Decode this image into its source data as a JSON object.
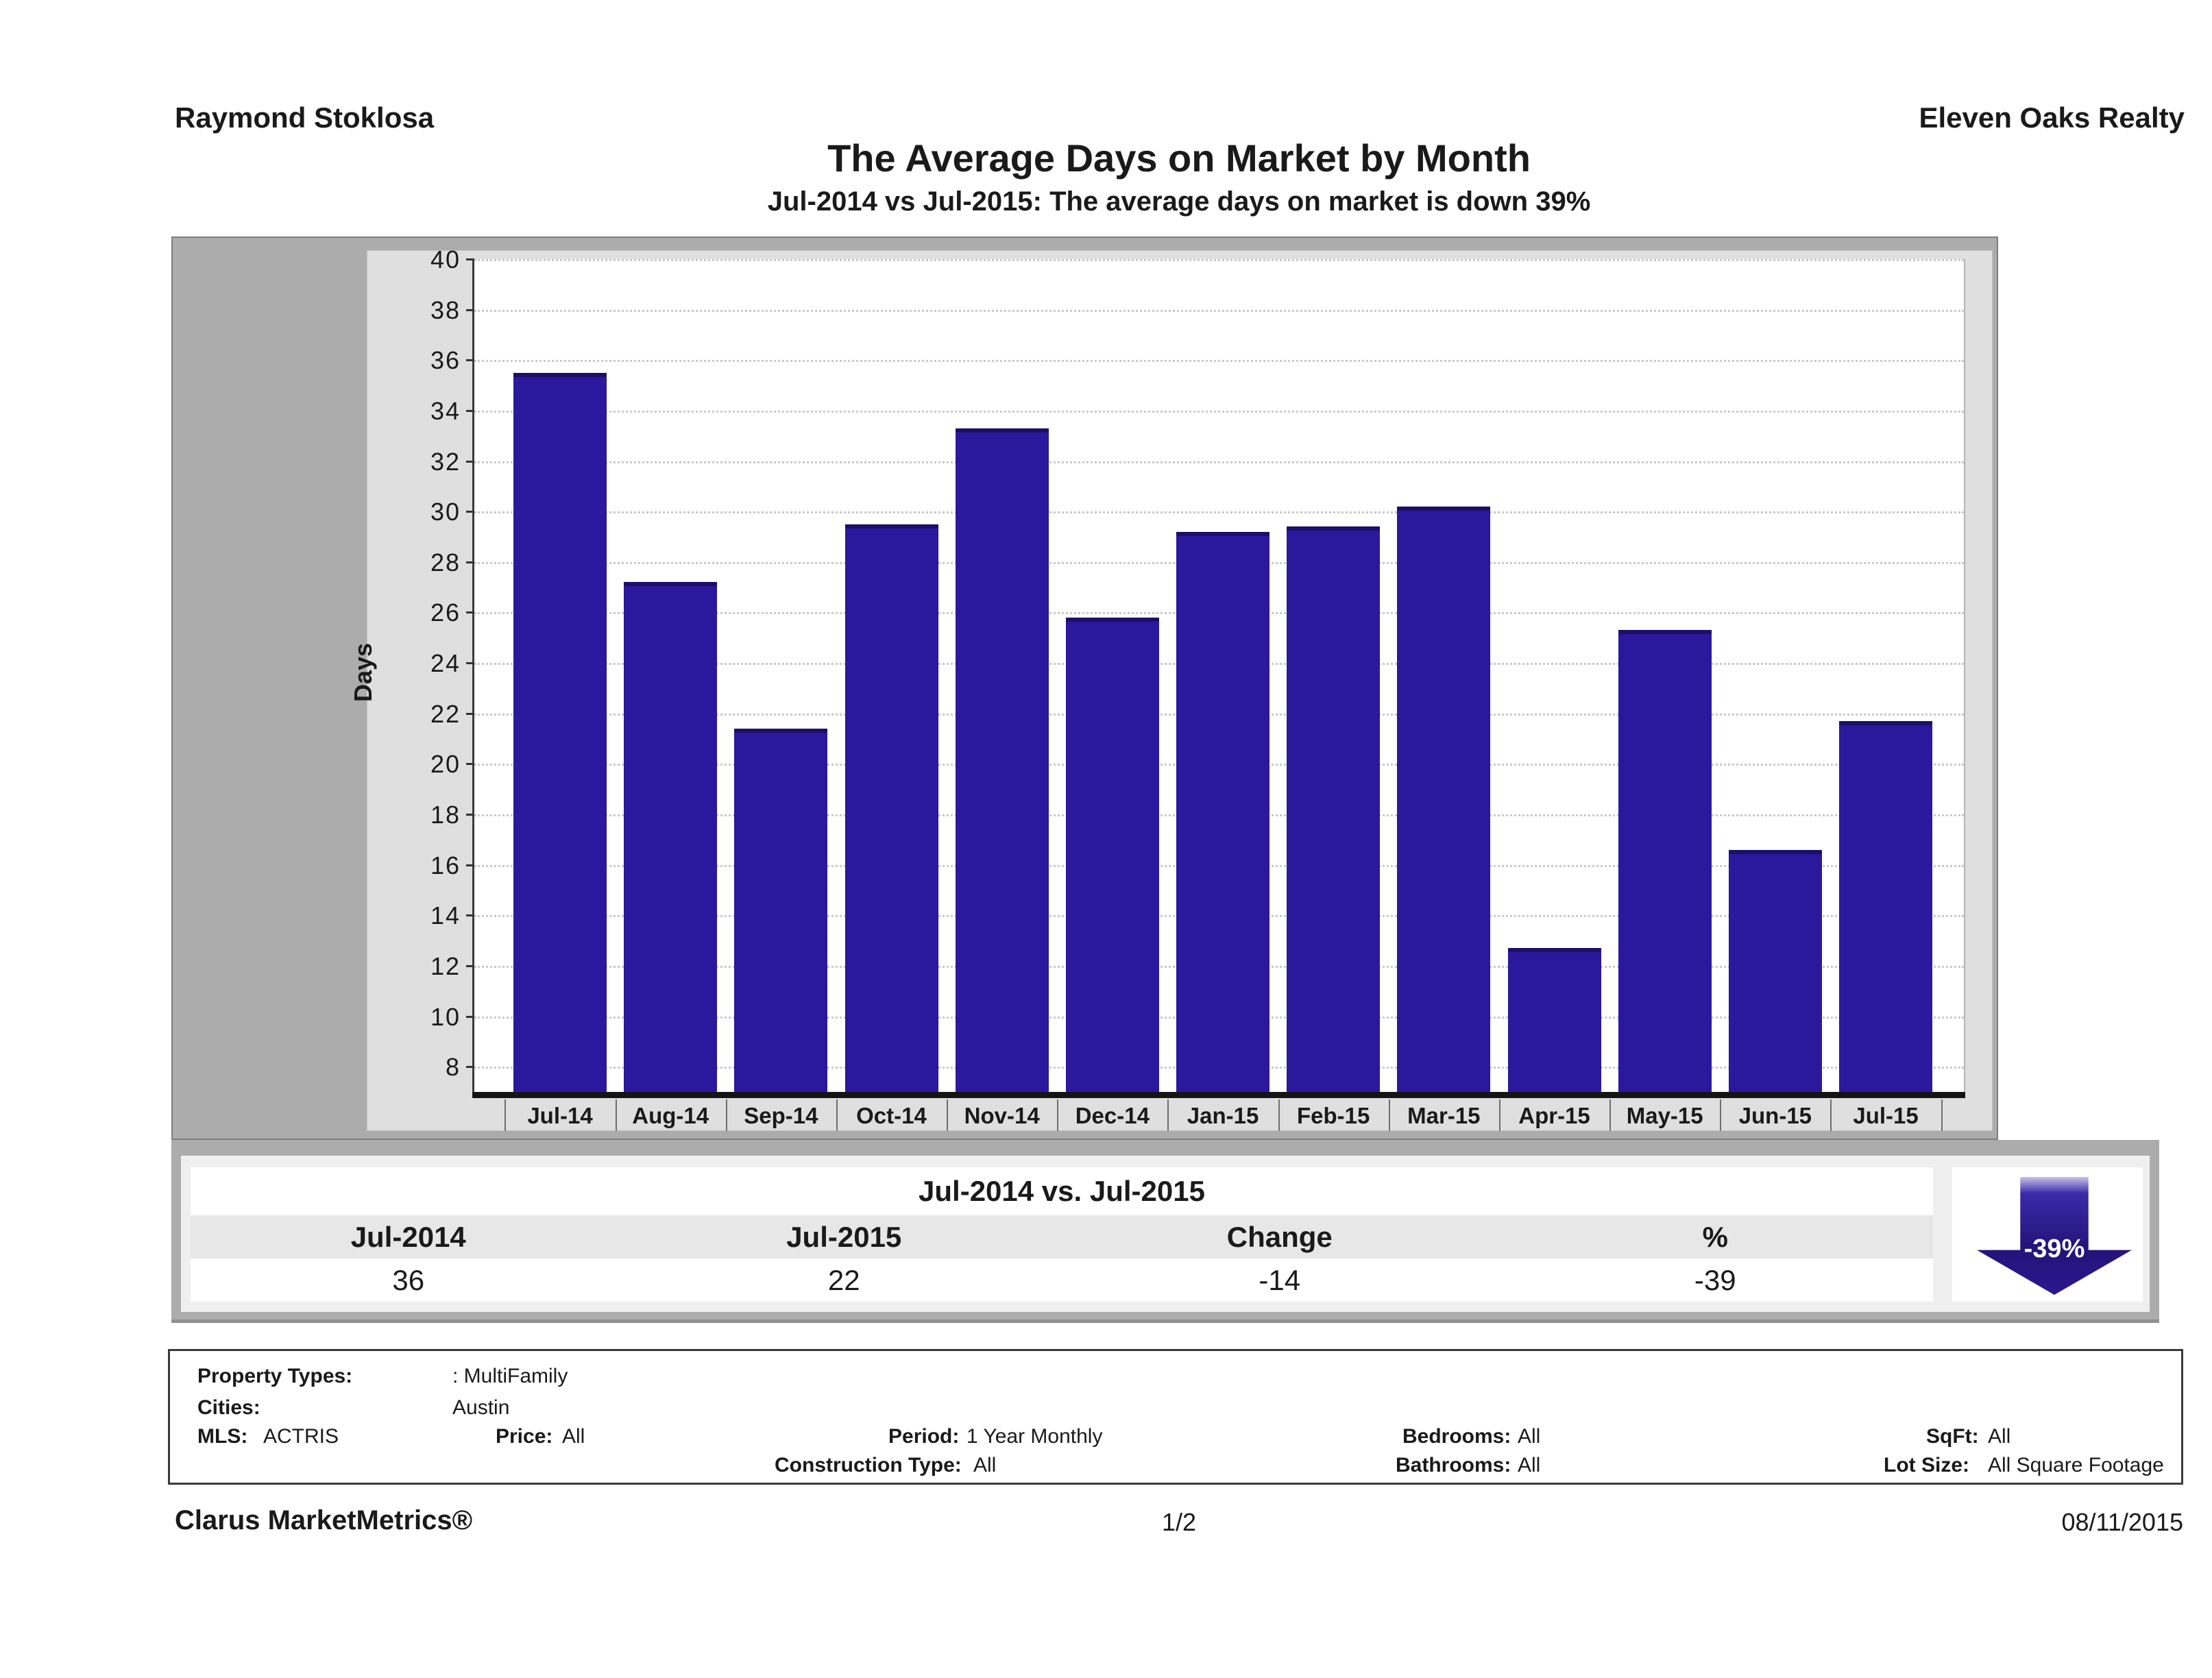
{
  "header": {
    "agent": "Raymond Stoklosa",
    "company": "Eleven Oaks Realty"
  },
  "title": "The Average Days on Market by Month",
  "subtitle": "Jul-2014 vs Jul-2015: The average days on market is down 39%",
  "chart_data": {
    "type": "bar",
    "title": "The Average Days on Market by Month",
    "xlabel": "",
    "ylabel": "Days",
    "categories": [
      "Jul-14",
      "Aug-14",
      "Sep-14",
      "Oct-14",
      "Nov-14",
      "Dec-14",
      "Jan-15",
      "Feb-15",
      "Mar-15",
      "Apr-15",
      "May-15",
      "Jun-15",
      "Jul-15"
    ],
    "values": [
      35.5,
      27.2,
      21.4,
      29.5,
      33.3,
      25.8,
      29.2,
      29.4,
      30.2,
      12.7,
      25.3,
      16.6,
      21.7
    ],
    "ylim": [
      7,
      40
    ],
    "yticks": {
      "min": 8,
      "max": 40,
      "step": 2
    },
    "grid": "horizontal-dotted",
    "legend": "none",
    "bar_color": "#2b189c"
  },
  "comparison_table": {
    "title": "Jul-2014 vs. Jul-2015",
    "columns": [
      "Jul-2014",
      "Jul-2015",
      "Change",
      "%"
    ],
    "values": [
      "36",
      "22",
      "-14",
      "-39"
    ],
    "arrow_label": "-39%",
    "arrow_color": "#2a1890"
  },
  "criteria": {
    "property_types_label": "Property Types:",
    "property_types_value": ": MultiFamily",
    "cities_label": "Cities:",
    "cities_value": "Austin",
    "mls_label": "MLS:",
    "mls_value": "ACTRIS",
    "price_label": "Price:",
    "price_value": "All",
    "period_label": "Period:",
    "period_value": "1 Year Monthly",
    "bedrooms_label": "Bedrooms:",
    "bedrooms_value": "All",
    "sqft_label": "SqFt:",
    "sqft_value": "All",
    "construction_label": "Construction Type:",
    "construction_value": "All",
    "bathrooms_label": "Bathrooms:",
    "bathrooms_value": "All",
    "lot_size_label": "Lot Size:",
    "lot_size_value": "All Square Footage"
  },
  "footer": {
    "brand": "Clarus MarketMetrics®",
    "page": "1/2",
    "date": "08/11/2015"
  }
}
